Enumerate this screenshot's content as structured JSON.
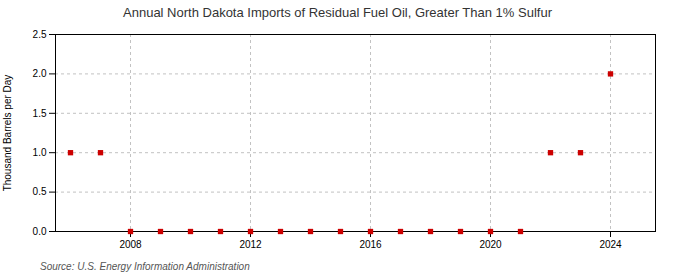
{
  "chart_data": {
    "type": "scatter",
    "title": "Annual North Dakota Imports of Residual Fuel Oil, Greater Than 1% Sulfur",
    "y_label": "Thousand Barrels per Day",
    "annotations": [
      "Source: U.S. Energy Information Administration"
    ],
    "x": [
      2006,
      2007,
      2008,
      2009,
      2010,
      2011,
      2012,
      2013,
      2014,
      2015,
      2016,
      2017,
      2018,
      2019,
      2020,
      2021,
      2022,
      2023,
      2024
    ],
    "values": [
      1.0,
      1.0,
      0.0,
      0.0,
      0.0,
      0.0,
      0.0,
      0.0,
      0.0,
      0.0,
      0.0,
      0.0,
      0.0,
      0.0,
      0.0,
      0.0,
      1.0,
      1.0,
      2.0
    ],
    "color": "#cc0000",
    "marker": "square",
    "xlim": [
      2005.5,
      2025.5
    ],
    "xticks": [
      2008,
      2012,
      2016,
      2020,
      2024
    ],
    "ylim": [
      0.0,
      2.5
    ],
    "yticks": [
      {
        "value": 0.0,
        "label": "0.0"
      },
      0.5,
      {
        "value": 1.0,
        "label": "1.0"
      },
      1.5,
      {
        "value": 2.0,
        "label": "2.0"
      },
      2.5
    ],
    "grid": true
  }
}
